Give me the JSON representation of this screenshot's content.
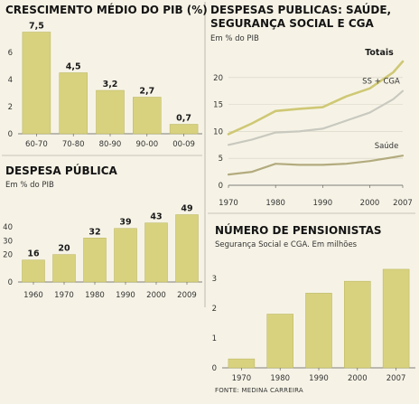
{
  "colors": {
    "background": "#f6f3e6",
    "bar": "#d8d27f",
    "bar_edge": "#b9b35e",
    "line_totals": "#cfc875",
    "line_ss_cga": "#c9c9c0",
    "line_saude": "#b3ab7e",
    "axis": "#555555",
    "grid": "#d6d3c3"
  },
  "source": "FONTE: MEDINA CARREIRA",
  "chart_data": [
    {
      "id": "pib",
      "type": "bar",
      "title": "CRESCIMENTO MÉDIO DO PIB (%)",
      "subtitle": "",
      "categories": [
        "60-70",
        "70-80",
        "80-90",
        "90-00",
        "00-09"
      ],
      "values": [
        7.5,
        4.5,
        3.2,
        2.7,
        0.7
      ],
      "labels": [
        "7,5",
        "4,5",
        "3,2",
        "2,7",
        "0,7"
      ],
      "yticks": [
        "0",
        "2",
        "4",
        "6"
      ],
      "ylim": [
        0,
        8
      ],
      "grid": false
    },
    {
      "id": "despesa",
      "type": "bar",
      "title": "DESPESA PÚBLICA",
      "subtitle": "Em % do PIB",
      "categories": [
        "1960",
        "1970",
        "1980",
        "1990",
        "2000",
        "2009"
      ],
      "values": [
        16,
        20,
        32,
        39,
        43,
        49
      ],
      "labels": [
        "16",
        "20",
        "32",
        "39",
        "43",
        "49"
      ],
      "yticks": [
        "0",
        "20",
        "30",
        "40"
      ],
      "ylim": [
        0,
        50
      ],
      "grid": false
    },
    {
      "id": "saude",
      "type": "line",
      "title_lines": [
        "DESPESAS PUBLICAS: SAÚDE,",
        "SEGURANÇA SOCIAL E CGA"
      ],
      "subtitle": "Em % do PIB",
      "x": [
        1970,
        1975,
        1980,
        1985,
        1990,
        1995,
        2000,
        2005,
        2007
      ],
      "xticks": [
        "1970",
        "1980",
        "1990",
        "2000",
        "2007"
      ],
      "yticks": [
        "0",
        "5",
        "10",
        "15",
        "20"
      ],
      "ylim": [
        0,
        24
      ],
      "grid": true,
      "series": [
        {
          "name": "Totais",
          "values": [
            9.5,
            11.5,
            13.8,
            14.2,
            14.5,
            16.5,
            18.0,
            21.0,
            23.0
          ]
        },
        {
          "name": "SS + CGA",
          "values": [
            7.5,
            8.5,
            9.8,
            10.0,
            10.5,
            12.0,
            13.5,
            16.0,
            17.5
          ]
        },
        {
          "name": "Saúde",
          "values": [
            2.0,
            2.5,
            4.0,
            3.8,
            3.8,
            4.0,
            4.5,
            5.2,
            5.5
          ]
        }
      ]
    },
    {
      "id": "pensionistas",
      "type": "bar",
      "title": "NÚMERO DE PENSIONISTAS",
      "subtitle": "Segurança Social e CGA. Em milhões",
      "categories": [
        "1970",
        "1980",
        "1990",
        "2000",
        "2007"
      ],
      "values": [
        0.3,
        1.8,
        2.5,
        2.9,
        3.3
      ],
      "yticks": [
        "0",
        "1",
        "2",
        "3"
      ],
      "ylim": [
        0,
        3.6
      ],
      "grid": false
    }
  ]
}
